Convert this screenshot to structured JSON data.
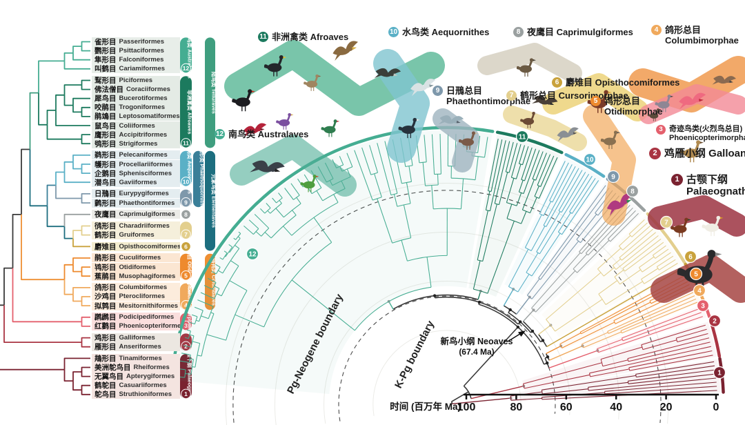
{
  "figure": {
    "axis": {
      "title": "时间 (百万年 Ma)",
      "ticks": [
        100,
        80,
        60,
        40,
        20,
        0
      ]
    },
    "annotations": {
      "neoaves_label": "新鸟小纲 Neoaves",
      "neoaves_age": "(67.4 Ma)",
      "kpg_boundary": "K-Pg boundary",
      "pg_neogene_boundary": "Pg-Neogene boundary"
    }
  },
  "clades": [
    {
      "num": 1,
      "cn": "古颚下纲",
      "la": "Palaeognathae",
      "color": "#7a2230",
      "rowbg": "#f4e4e0",
      "rows": [
        32,
        36
      ],
      "fan": {
        "a0": 2.5,
        "a1": 9.5,
        "tips": 8,
        "crown": 84
      }
    },
    {
      "num": 2,
      "cn": "鸡雁小纲",
      "la": "Galloanseres",
      "color": "#a93442",
      "rowbg": "#ece7e1",
      "rows": [
        30,
        31
      ],
      "fan": {
        "a0": 10,
        "a1": 17.5,
        "tips": 8,
        "crown": 78
      }
    },
    {
      "num": 3,
      "cn": "奇迹鸟类(火烈鸟总目)",
      "la": "Phoenicopterimorphae",
      "color": "#e4606d",
      "rowbg": "#fadedd",
      "rows": [
        28,
        29
      ],
      "fan": {
        "a0": 18.5,
        "a1": 21.2,
        "tips": 3,
        "crown": 45
      }
    },
    {
      "num": 4,
      "cn": "鸽形总目",
      "la": "Columbimorphae",
      "color": "#f0a95c",
      "rowbg": "#fcecdc",
      "rows": [
        25,
        27
      ],
      "fan": {
        "a0": 21.8,
        "a1": 24.8,
        "tips": 4,
        "crown": 50
      }
    },
    {
      "num": 5,
      "cn": "鸨形总目",
      "la": "Otidimorphae",
      "color": "#ee8a2e",
      "rowbg": "#fbe6d2",
      "rows": [
        22,
        24
      ],
      "fan": {
        "a0": 25.2,
        "a1": 28.8,
        "tips": 5,
        "crown": 58
      }
    },
    {
      "num": 6,
      "cn": "麝雉目",
      "la": "Opisthocomiformes",
      "color": "#c9a23c",
      "rowbg": "#f3eccf",
      "rows": [
        21,
        21
      ],
      "fan": {
        "a0": 29.5,
        "a1": 30.5,
        "tips": 1,
        "crown": 0
      }
    },
    {
      "num": 7,
      "cn": "鹤形总目",
      "la": "Cursorimorphae",
      "color": "#e3cf8e",
      "rowbg": "#f5efdb",
      "rows": [
        19,
        20
      ],
      "fan": {
        "a0": 31,
        "a1": 43.5,
        "tips": 14,
        "crown": 57
      }
    },
    {
      "num": 8,
      "cn": "夜鹰目",
      "la": "Caprimulgiformes",
      "color": "#9aa0a0",
      "rowbg": "#ebebe7",
      "rows": [
        18,
        18
      ],
      "fan": {
        "a0": 44.5,
        "a1": 49.5,
        "tips": 6,
        "crown": 58
      }
    },
    {
      "num": 9,
      "cn": "日鳽总目",
      "la": "Phaethontimorphae",
      "color": "#7e98ab",
      "rowbg": "#e4edf0",
      "rows": [
        16,
        17
      ],
      "fan": {
        "a0": 50,
        "a1": 54.5,
        "tips": 5,
        "crown": 55
      }
    },
    {
      "num": 10,
      "cn": "水鸟类",
      "la": "Aequornithes",
      "color": "#5ab0c6",
      "rowbg": "#e4edf0",
      "rows": [
        12,
        15
      ],
      "fan": {
        "a0": 55.5,
        "a1": 64.5,
        "tips": 11,
        "crown": 56
      }
    },
    {
      "num": 11,
      "cn": "非洲禽类",
      "la": "Afroaves",
      "color": "#1c7a5e",
      "rowbg": "#e4ebe5",
      "rows": [
        4,
        11
      ],
      "fan": {
        "a0": 65.5,
        "a1": 79.5,
        "tips": 17,
        "crown": 62
      }
    },
    {
      "num": 12,
      "cn": "南鸟类",
      "la": "Australaves",
      "color": "#45ad92",
      "rowbg": "#e8eee9",
      "rows": [
        0,
        3
      ],
      "fan": {
        "a0": 80.5,
        "a1": 175,
        "tips": 56,
        "crown": 62
      }
    }
  ],
  "superclades": [
    {
      "key": "T",
      "cn": "陆鸟类",
      "la": "Telluraves",
      "color": "#3f9e7f",
      "rows": [
        0,
        11
      ],
      "col": 3
    },
    {
      "key": "P",
      "cn": "鹲形类",
      "la": "Phaethoquornithes",
      "color": "#3a7f98",
      "rows": [
        12,
        17
      ],
      "col": 2
    },
    {
      "key": "E",
      "cn": "元素鸟类",
      "la": "Elementaves",
      "color": "#1d6e7f",
      "rows": [
        12,
        21
      ],
      "col": 3
    },
    {
      "key": "CB",
      "cn": "鸽鸨类",
      "la": "Columbaves",
      "color": "#ee8f33",
      "rows": [
        22,
        27
      ],
      "col": 3
    }
  ],
  "taxa": [
    {
      "cn": "雀形目",
      "la": "Passeriformes",
      "clade": 12
    },
    {
      "cn": "鹦形目",
      "la": "Psittaciformes",
      "clade": 12
    },
    {
      "cn": "隼形目",
      "la": "Falconiformes",
      "clade": 12
    },
    {
      "cn": "叫鹤目",
      "la": "Cariamiformes",
      "clade": 12
    },
    {
      "cn": "䴕形目",
      "la": "Piciformes",
      "clade": 11
    },
    {
      "cn": "佛法僧目",
      "la": "Coraciiformes",
      "clade": 11
    },
    {
      "cn": "犀鸟目",
      "la": "Bucerotiformes",
      "clade": 11
    },
    {
      "cn": "咬鹃目",
      "la": "Trogoniformes",
      "clade": 11
    },
    {
      "cn": "鹃鴗目",
      "la": "Leptosomatiformes",
      "clade": 11
    },
    {
      "cn": "鼠鸟目",
      "la": "Coliiformes",
      "clade": 11
    },
    {
      "cn": "鹰形目",
      "la": "Accipitriformes",
      "clade": 11
    },
    {
      "cn": "鸮形目",
      "la": "Strigiformes",
      "clade": 11
    },
    {
      "cn": "鹈形目",
      "la": "Pelecaniformes",
      "clade": 10
    },
    {
      "cn": "鹱形目",
      "la": "Procellariiformes",
      "clade": 10
    },
    {
      "cn": "企鹅目",
      "la": "Sphenisciformes",
      "clade": 10
    },
    {
      "cn": "潜鸟目",
      "la": "Gaviiformes",
      "clade": 10
    },
    {
      "cn": "日鳽目",
      "la": "Eurypygiformes",
      "clade": 9
    },
    {
      "cn": "鹲形目",
      "la": "Phaethontiformes",
      "clade": 9
    },
    {
      "cn": "夜鹰目",
      "la": "Caprimulgiformes",
      "clade": 8
    },
    {
      "cn": "鸻形目",
      "la": "Charadriiformes",
      "clade": 7
    },
    {
      "cn": "鹤形目",
      "la": "Gruiformes",
      "clade": 7
    },
    {
      "cn": "麝雉目",
      "la": "Opisthocomiformes",
      "clade": 6
    },
    {
      "cn": "鹃形目",
      "la": "Cuculiformes",
      "clade": 5
    },
    {
      "cn": "鸨形目",
      "la": "Otidiformes",
      "clade": 5
    },
    {
      "cn": "蕉鹃目",
      "la": "Musophagiformes",
      "clade": 5
    },
    {
      "cn": "鸽形目",
      "la": "Columbiformes",
      "clade": 4
    },
    {
      "cn": "沙鸡目",
      "la": "Pterocliformes",
      "clade": 4
    },
    {
      "cn": "拟鹑目",
      "la": "Mesitornithiformes",
      "clade": 4
    },
    {
      "cn": "䴙䴘目",
      "la": "Podicipediformes",
      "clade": 3
    },
    {
      "cn": "红鹳目",
      "la": "Phoenicopteriformes",
      "clade": 3
    },
    {
      "cn": "鸡形目",
      "la": "Galliformes",
      "clade": 2
    },
    {
      "cn": "雁形目",
      "la": "Anseriformes",
      "clade": 2
    },
    {
      "cn": "䳍形目",
      "la": "Tinamiformes",
      "clade": 1
    },
    {
      "cn": "美洲鸵鸟目",
      "la": "Rheiformes",
      "clade": 1
    },
    {
      "cn": "无翼鸟目",
      "la": "Apterygiformes",
      "clade": 1
    },
    {
      "cn": "鹤鸵目",
      "la": "Casuariiformes",
      "clade": 1
    },
    {
      "cn": "鸵鸟目",
      "la": "Struthioniformes",
      "clade": 1
    }
  ],
  "chart_data": {
    "type": "circular_phylogenetic_tree",
    "title": "",
    "time_axis": {
      "label": "时间 (百万年 Ma)",
      "ticks_ma": [
        100,
        80,
        60,
        40,
        20,
        0
      ]
    },
    "boundaries": [
      "K-Pg boundary",
      "Pg-Neogene boundary"
    ],
    "neoaves_crown_age_ma": 67.4,
    "n_orders": 37,
    "clade_order_around_fan": [
      12,
      11,
      10,
      9,
      8,
      7,
      6,
      5,
      4,
      3,
      2,
      1
    ],
    "numbered_clades": {
      "1": "古颚下纲 Palaeognathae",
      "2": "鸡雁小纲 Galloanseres",
      "3": "奇迹鸟类(火烈鸟总目) Phoenicopterimorphae",
      "4": "鸽形总目 Columbimorphae",
      "5": "鸨形总目 Otidimorphae",
      "6": "麝雉目 Opisthocomiformes",
      "7": "鹤形总目 Cursorimorphae",
      "8": "夜鹰目 Caprimulgiformes",
      "9": "日鳽总目 Phaethontimorphae",
      "10": "水鸟类 Aequornithes",
      "11": "非洲禽类 Afroaves",
      "12": "南鸟类 Australaves"
    },
    "superclades": [
      "陆鸟类 Telluraves",
      "鹲形类 Phaethoquornithes",
      "元素鸟类 Elementaves",
      "鸽鸨类 Columbaves"
    ]
  }
}
